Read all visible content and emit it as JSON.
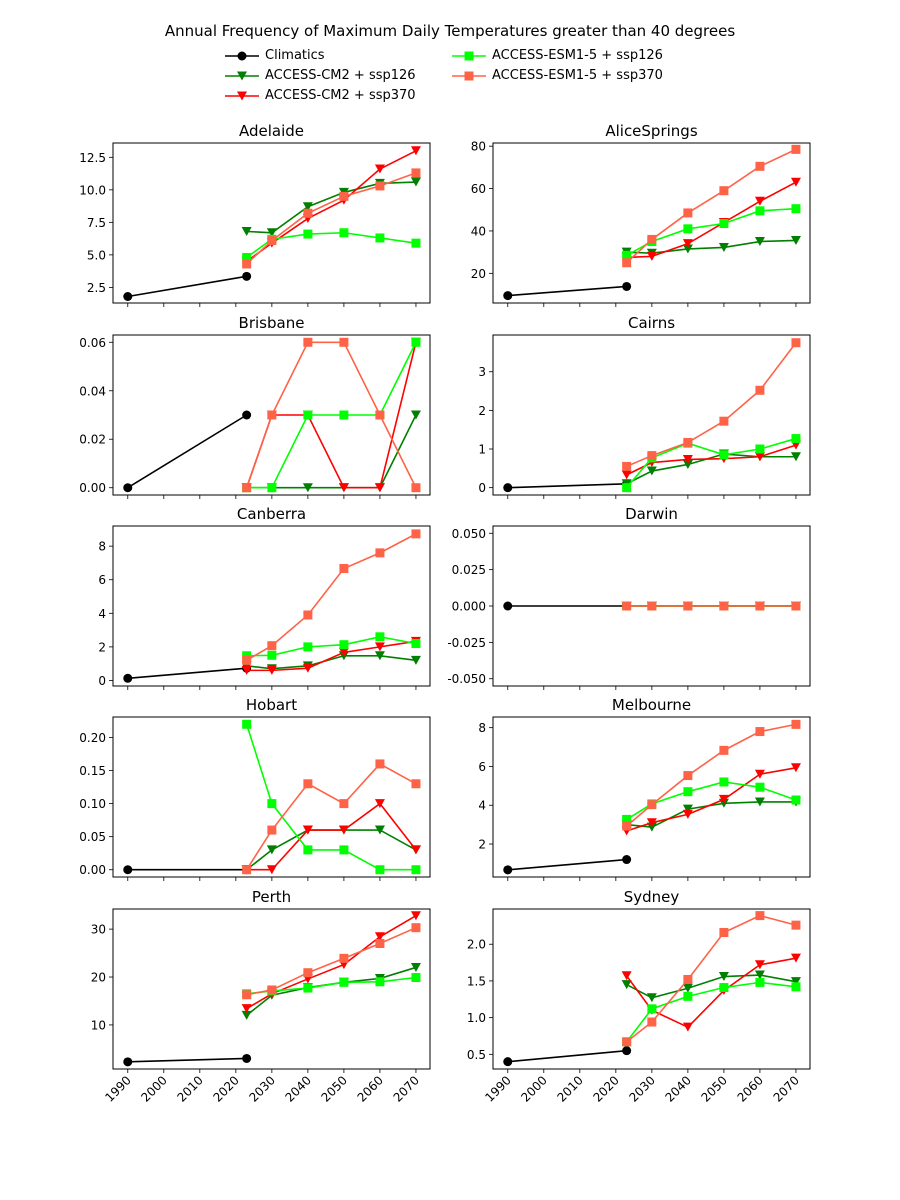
{
  "chart_data": {
    "type": "line",
    "title": "Annual Frequency of Maximum Daily Temperatures greater than 40 degrees",
    "xlabel": "",
    "ylabel": "",
    "x_tick_labels": [
      "1990",
      "2000",
      "2010",
      "2020",
      "2030",
      "2040",
      "2050",
      "2060",
      "2070"
    ],
    "x_ticks": [
      1990,
      2000,
      2010,
      2020,
      2030,
      2040,
      2050,
      2060,
      2070
    ],
    "xlim": [
      1985.9,
      2073.9
    ],
    "legend_position": "top-center",
    "legend": [
      {
        "name": "Climatics",
        "color": "#000000",
        "marker": "circle"
      },
      {
        "name": "ACCESS-CM2 + ssp126",
        "color": "#008000",
        "marker": "triangle-down"
      },
      {
        "name": "ACCESS-CM2 + ssp370",
        "color": "#ff0000",
        "marker": "triangle-down"
      },
      {
        "name": "ACCESS-ESM1-5 + ssp126",
        "color": "#00ff00",
        "marker": "square"
      },
      {
        "name": "ACCESS-ESM1-5 + ssp370",
        "color": "#ff6347",
        "marker": "square"
      }
    ],
    "climatics_x": [
      1990,
      2023
    ],
    "projection_x": [
      2023,
      2030,
      2040,
      2050,
      2060,
      2070
    ],
    "subplots": [
      {
        "title": "Adelaide",
        "ylim": [
          1.3,
          13.6
        ],
        "yticks": [
          2.5,
          5.0,
          7.5,
          10.0,
          12.5
        ],
        "ytick_labels": [
          "2.5",
          "5.0",
          "7.5",
          "10.0",
          "12.5"
        ],
        "series": [
          {
            "name": "Climatics",
            "values": [
              1.8,
              3.35
            ]
          },
          {
            "name": "ACCESS-CM2 + ssp126",
            "values": [
              6.8,
              6.7,
              8.7,
              9.8,
              10.5,
              10.6
            ]
          },
          {
            "name": "ACCESS-CM2 + ssp370",
            "values": [
              4.5,
              5.9,
              7.8,
              9.2,
              11.6,
              13.0
            ]
          },
          {
            "name": "ACCESS-ESM1-5 + ssp126",
            "values": [
              4.8,
              6.2,
              6.6,
              6.7,
              6.3,
              5.9
            ]
          },
          {
            "name": "ACCESS-ESM1-5 + ssp370",
            "values": [
              4.3,
              6.1,
              8.2,
              9.5,
              10.3,
              11.3
            ]
          }
        ]
      },
      {
        "title": "AliceSprings",
        "ylim": [
          6,
          81.5
        ],
        "yticks": [
          20,
          40,
          60,
          80
        ],
        "ytick_labels": [
          "20",
          "40",
          "60",
          "80"
        ],
        "series": [
          {
            "name": "Climatics",
            "values": [
              9.5,
              13.8
            ]
          },
          {
            "name": "ACCESS-CM2 + ssp126",
            "values": [
              30,
              29.5,
              31.5,
              32.2,
              35,
              35.5
            ]
          },
          {
            "name": "ACCESS-CM2 + ssp370",
            "values": [
              27.5,
              28,
              34,
              44,
              54,
              63
            ]
          },
          {
            "name": "ACCESS-ESM1-5 + ssp126",
            "values": [
              28.5,
              35,
              41,
              43.5,
              49.5,
              50.5
            ]
          },
          {
            "name": "ACCESS-ESM1-5 + ssp370",
            "values": [
              25,
              36,
              48.5,
              59,
              70.5,
              78.5
            ]
          }
        ]
      },
      {
        "title": "Brisbane",
        "ylim": [
          -0.003,
          0.063
        ],
        "yticks": [
          0.0,
          0.02,
          0.04,
          0.06
        ],
        "ytick_labels": [
          "0.00",
          "0.02",
          "0.04",
          "0.06"
        ],
        "series": [
          {
            "name": "Climatics",
            "values": [
              0.0,
              0.03
            ]
          },
          {
            "name": "ACCESS-CM2 + ssp126",
            "values": [
              0.0,
              0.0,
              0.0,
              0.0,
              0.0,
              0.03
            ]
          },
          {
            "name": "ACCESS-CM2 + ssp370",
            "values": [
              0.0,
              0.03,
              0.03,
              0.0,
              0.0,
              0.06
            ]
          },
          {
            "name": "ACCESS-ESM1-5 + ssp126",
            "values": [
              0.0,
              0.0,
              0.03,
              0.03,
              0.03,
              0.06
            ]
          },
          {
            "name": "ACCESS-ESM1-5 + ssp370",
            "values": [
              0.0,
              0.03,
              0.06,
              0.06,
              0.03,
              0.0
            ]
          }
        ]
      },
      {
        "title": "Cairns",
        "ylim": [
          -0.19,
          3.95
        ],
        "yticks": [
          0,
          1,
          2,
          3
        ],
        "ytick_labels": [
          "0",
          "1",
          "2",
          "3"
        ],
        "series": [
          {
            "name": "Climatics",
            "values": [
              0.0,
              0.1
            ]
          },
          {
            "name": "ACCESS-CM2 + ssp126",
            "values": [
              0.1,
              0.43,
              0.6,
              0.87,
              0.8,
              0.8
            ]
          },
          {
            "name": "ACCESS-CM2 + ssp370",
            "values": [
              0.33,
              0.65,
              0.73,
              0.75,
              0.8,
              1.1
            ]
          },
          {
            "name": "ACCESS-ESM1-5 + ssp126",
            "values": [
              0.0,
              0.77,
              1.15,
              0.85,
              1.0,
              1.27
            ]
          },
          {
            "name": "ACCESS-ESM1-5 + ssp370",
            "values": [
              0.55,
              0.83,
              1.17,
              1.72,
              2.52,
              3.75
            ]
          }
        ]
      },
      {
        "title": "Canberra",
        "ylim": [
          -0.33,
          9.2
        ],
        "yticks": [
          0,
          2,
          4,
          6,
          8
        ],
        "ytick_labels": [
          "0",
          "2",
          "4",
          "6",
          "8"
        ],
        "series": [
          {
            "name": "Climatics",
            "values": [
              0.13,
              0.73
            ]
          },
          {
            "name": "ACCESS-CM2 + ssp126",
            "values": [
              0.87,
              0.7,
              0.87,
              1.47,
              1.47,
              1.2
            ]
          },
          {
            "name": "ACCESS-CM2 + ssp370",
            "values": [
              0.6,
              0.6,
              0.73,
              1.67,
              2.0,
              2.33
            ]
          },
          {
            "name": "ACCESS-ESM1-5 + ssp126",
            "values": [
              1.47,
              1.5,
              2.0,
              2.13,
              2.6,
              2.2
            ]
          },
          {
            "name": "ACCESS-ESM1-5 + ssp370",
            "values": [
              1.2,
              2.07,
              3.9,
              6.67,
              7.6,
              8.73
            ]
          }
        ]
      },
      {
        "title": "Darwin",
        "ylim": [
          -0.055,
          0.055
        ],
        "yticks": [
          -0.05,
          -0.025,
          0.0,
          0.025,
          0.05
        ],
        "ytick_labels": [
          "-0.050",
          "-0.025",
          "0.000",
          "0.025",
          "0.050"
        ],
        "series": [
          {
            "name": "Climatics",
            "values": [
              0.0,
              0.0
            ]
          },
          {
            "name": "ACCESS-CM2 + ssp126",
            "values": [
              0.0,
              0.0,
              0.0,
              0.0,
              0.0,
              0.0
            ]
          },
          {
            "name": "ACCESS-CM2 + ssp370",
            "values": [
              0.0,
              0.0,
              0.0,
              0.0,
              0.0,
              0.0
            ]
          },
          {
            "name": "ACCESS-ESM1-5 + ssp126",
            "values": [
              0.0,
              0.0,
              0.0,
              0.0,
              0.0,
              0.0
            ]
          },
          {
            "name": "ACCESS-ESM1-5 + ssp370",
            "values": [
              0.0,
              0.0,
              0.0,
              0.0,
              0.0,
              0.0
            ]
          }
        ]
      },
      {
        "title": "Hobart",
        "ylim": [
          -0.011,
          0.231
        ],
        "yticks": [
          0.0,
          0.05,
          0.1,
          0.15,
          0.2
        ],
        "ytick_labels": [
          "0.00",
          "0.05",
          "0.10",
          "0.15",
          "0.20"
        ],
        "series": [
          {
            "name": "Climatics",
            "values": [
              0.0,
              0.0
            ]
          },
          {
            "name": "ACCESS-CM2 + ssp126",
            "values": [
              0.0,
              0.03,
              0.06,
              0.06,
              0.06,
              0.03
            ]
          },
          {
            "name": "ACCESS-CM2 + ssp370",
            "values": [
              0.0,
              0.0,
              0.06,
              0.06,
              0.1,
              0.03
            ]
          },
          {
            "name": "ACCESS-ESM1-5 + ssp126",
            "values": [
              0.22,
              0.1,
              0.03,
              0.03,
              0.0,
              0.0
            ]
          },
          {
            "name": "ACCESS-ESM1-5 + ssp370",
            "values": [
              0.0,
              0.06,
              0.13,
              0.1,
              0.16,
              0.13
            ]
          }
        ]
      },
      {
        "title": "Melbourne",
        "ylim": [
          0.3,
          8.55
        ],
        "yticks": [
          2,
          4,
          6,
          8
        ],
        "ytick_labels": [
          "2",
          "4",
          "6",
          "8"
        ],
        "series": [
          {
            "name": "Climatics",
            "values": [
              0.67,
              1.2
            ]
          },
          {
            "name": "ACCESS-CM2 + ssp126",
            "values": [
              3.0,
              2.87,
              3.8,
              4.1,
              4.17,
              4.17
            ]
          },
          {
            "name": "ACCESS-CM2 + ssp370",
            "values": [
              2.67,
              3.1,
              3.53,
              4.3,
              5.6,
              5.93
            ]
          },
          {
            "name": "ACCESS-ESM1-5 + ssp126",
            "values": [
              3.27,
              4.07,
              4.7,
              5.2,
              4.93,
              4.27
            ]
          },
          {
            "name": "ACCESS-ESM1-5 + ssp370",
            "values": [
              2.93,
              4.03,
              5.53,
              6.83,
              7.8,
              8.17
            ]
          }
        ]
      },
      {
        "title": "Perth",
        "ylim": [
          0.8,
          34.2
        ],
        "yticks": [
          10,
          20,
          30
        ],
        "ytick_labels": [
          "10",
          "20",
          "30"
        ],
        "series": [
          {
            "name": "Climatics",
            "values": [
              2.3,
              3.0
            ]
          },
          {
            "name": "ACCESS-CM2 + ssp126",
            "values": [
              12.0,
              16.2,
              17.8,
              18.9,
              19.7,
              22.0
            ]
          },
          {
            "name": "ACCESS-CM2 + ssp370",
            "values": [
              13.4,
              16.5,
              19.6,
              22.6,
              28.4,
              32.8
            ]
          },
          {
            "name": "ACCESS-ESM1-5 + ssp126",
            "values": [
              16.5,
              17.1,
              17.7,
              18.9,
              19.0,
              19.9
            ]
          },
          {
            "name": "ACCESS-ESM1-5 + ssp370",
            "values": [
              16.3,
              17.3,
              20.9,
              23.9,
              27.0,
              30.3
            ]
          }
        ]
      },
      {
        "title": "Sydney",
        "ylim": [
          0.3,
          2.48
        ],
        "yticks": [
          0.5,
          1.0,
          1.5,
          2.0
        ],
        "ytick_labels": [
          "0.5",
          "1.0",
          "1.5",
          "2.0"
        ],
        "series": [
          {
            "name": "Climatics",
            "values": [
              0.4,
              0.55
            ]
          },
          {
            "name": "ACCESS-CM2 + ssp126",
            "values": [
              1.45,
              1.27,
              1.4,
              1.56,
              1.58,
              1.49
            ]
          },
          {
            "name": "ACCESS-CM2 + ssp370",
            "values": [
              1.57,
              1.1,
              0.87,
              1.37,
              1.72,
              1.81
            ]
          },
          {
            "name": "ACCESS-ESM1-5 + ssp126",
            "values": [
              0.67,
              1.12,
              1.29,
              1.41,
              1.48,
              1.42
            ]
          },
          {
            "name": "ACCESS-ESM1-5 + ssp370",
            "values": [
              0.67,
              0.94,
              1.52,
              2.16,
              2.39,
              2.26
            ]
          }
        ]
      }
    ]
  }
}
